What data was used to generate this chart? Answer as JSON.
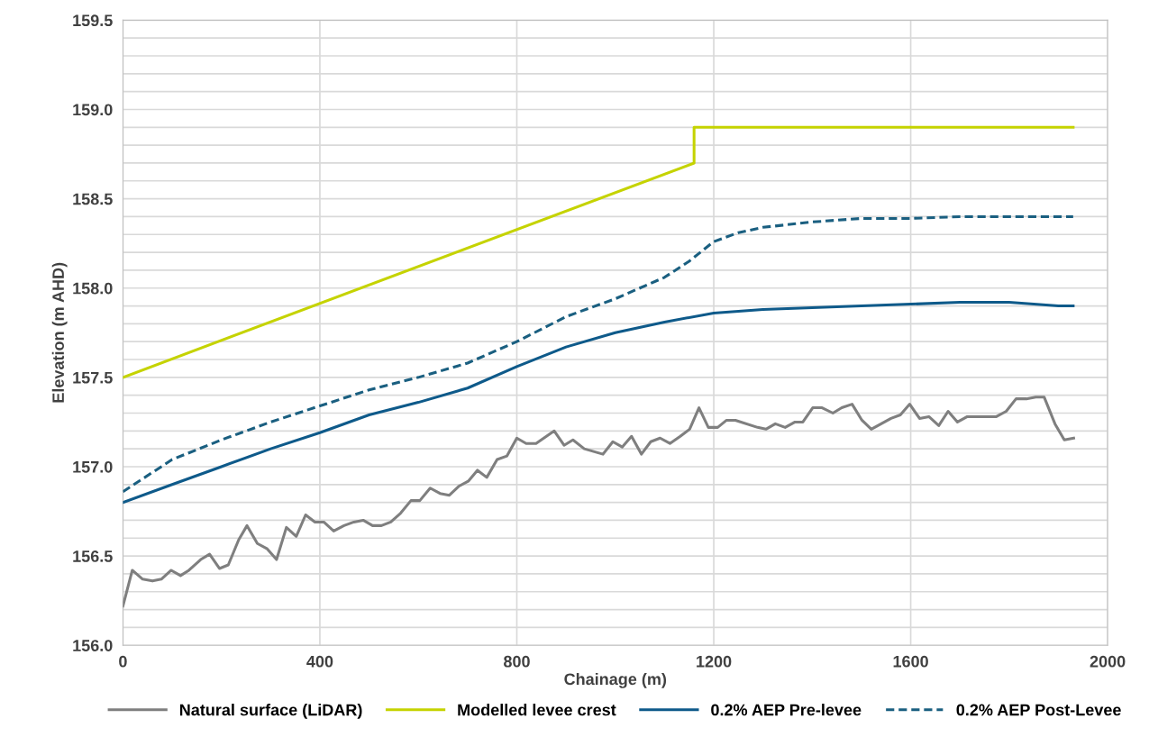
{
  "chart_data": {
    "type": "line",
    "xlabel": "Chainage (m)",
    "ylabel": "Elevation (m AHD)",
    "xlim": [
      0,
      2000
    ],
    "xticks": [
      0,
      400,
      800,
      1200,
      1600,
      2000
    ],
    "ylim": [
      156.0,
      159.5
    ],
    "yticks": [
      {
        "value": 156.0,
        "label": "156.0"
      },
      {
        "value": 156.1,
        "label": null
      },
      {
        "value": 156.2,
        "label": null
      },
      {
        "value": 156.3,
        "label": null
      },
      {
        "value": 156.4,
        "label": null
      },
      {
        "value": 156.5,
        "label": "156.5"
      },
      {
        "value": 156.6,
        "label": null
      },
      {
        "value": 156.7,
        "label": null
      },
      {
        "value": 156.8,
        "label": null
      },
      {
        "value": 156.9,
        "label": null
      },
      {
        "value": 157.0,
        "label": "157.0"
      },
      {
        "value": 157.1,
        "label": null
      },
      {
        "value": 157.2,
        "label": null
      },
      {
        "value": 157.3,
        "label": null
      },
      {
        "value": 157.4,
        "label": null
      },
      {
        "value": 157.5,
        "label": "157.5"
      },
      {
        "value": 157.6,
        "label": null
      },
      {
        "value": 157.7,
        "label": null
      },
      {
        "value": 157.8,
        "label": null
      },
      {
        "value": 157.9,
        "label": null
      },
      {
        "value": 158.0,
        "label": "158.0"
      },
      {
        "value": 158.1,
        "label": null
      },
      {
        "value": 158.2,
        "label": null
      },
      {
        "value": 158.3,
        "label": null
      },
      {
        "value": 158.4,
        "label": null
      },
      {
        "value": 158.5,
        "label": "158.5"
      },
      {
        "value": 158.6,
        "label": null
      },
      {
        "value": 158.7,
        "label": null
      },
      {
        "value": 158.8,
        "label": null
      },
      {
        "value": 158.9,
        "label": null
      },
      {
        "value": 159.0,
        "label": "159.0"
      },
      {
        "value": 159.1,
        "label": null
      },
      {
        "value": 159.2,
        "label": null
      },
      {
        "value": 159.3,
        "label": null
      },
      {
        "value": 159.4,
        "label": null
      },
      {
        "value": 159.5,
        "label": "159.5"
      }
    ],
    "grid": true,
    "legend": "bottom",
    "marker": "none",
    "series": [
      {
        "name": "Natural surface (LiDAR)",
        "color": "#7f7f7f",
        "line_style": "solid",
        "x": [
          0,
          19,
          40,
          60,
          78,
          98,
          117,
          134,
          158,
          176,
          196,
          214,
          235,
          252,
          273,
          293,
          312,
          332,
          352,
          371,
          390,
          408,
          428,
          449,
          469,
          488,
          507,
          525,
          544,
          564,
          585,
          603,
          624,
          644,
          663,
          682,
          702,
          720,
          739,
          760,
          780,
          800,
          819,
          839,
          876,
          896,
          914,
          937,
          975,
          995,
          1014,
          1033,
          1053,
          1072,
          1091,
          1111,
          1132,
          1151,
          1170,
          1189,
          1208,
          1226,
          1244,
          1289,
          1306,
          1325,
          1345,
          1365,
          1381,
          1401,
          1420,
          1442,
          1460,
          1481,
          1501,
          1520,
          1560,
          1579,
          1598,
          1618,
          1637,
          1657,
          1676,
          1695,
          1715,
          1735,
          1774,
          1794,
          1814,
          1835,
          1854,
          1871,
          1893,
          1912,
          1931
        ],
        "values": [
          156.22,
          156.42,
          156.37,
          156.36,
          156.37,
          156.42,
          156.39,
          156.42,
          156.48,
          156.51,
          156.43,
          156.45,
          156.59,
          156.67,
          156.57,
          156.54,
          156.48,
          156.66,
          156.61,
          156.73,
          156.69,
          156.69,
          156.64,
          156.67,
          156.69,
          156.7,
          156.67,
          156.67,
          156.69,
          156.74,
          156.81,
          156.81,
          156.88,
          156.85,
          156.84,
          156.89,
          156.92,
          156.98,
          156.94,
          157.04,
          157.06,
          157.16,
          157.13,
          157.13,
          157.2,
          157.12,
          157.15,
          157.1,
          157.07,
          157.14,
          157.11,
          157.17,
          157.07,
          157.14,
          157.16,
          157.13,
          157.17,
          157.21,
          157.33,
          157.22,
          157.22,
          157.26,
          157.26,
          157.22,
          157.21,
          157.24,
          157.22,
          157.25,
          157.25,
          157.33,
          157.33,
          157.3,
          157.33,
          157.35,
          157.26,
          157.21,
          157.27,
          157.29,
          157.35,
          157.27,
          157.28,
          157.23,
          157.31,
          157.25,
          157.28,
          157.28,
          157.28,
          157.31,
          157.38,
          157.38,
          157.39,
          157.39,
          157.24,
          157.15,
          157.16
        ]
      },
      {
        "name": "Modelled levee crest",
        "color": "#c5d300",
        "line_style": "solid",
        "x": [
          0,
          1160,
          1160,
          1930
        ],
        "values": [
          157.5,
          158.7,
          158.9,
          158.9
        ]
      },
      {
        "name": "0.2% AEP Pre-levee",
        "color": "#0e5a8a",
        "line_style": "solid",
        "x": [
          0,
          100,
          200,
          300,
          400,
          500,
          600,
          700,
          800,
          900,
          1000,
          1100,
          1200,
          1300,
          1400,
          1500,
          1600,
          1700,
          1800,
          1900,
          1930
        ],
        "values": [
          156.8,
          156.9,
          157.0,
          157.1,
          157.19,
          157.29,
          157.36,
          157.44,
          157.56,
          157.67,
          157.75,
          157.81,
          157.86,
          157.88,
          157.89,
          157.9,
          157.91,
          157.92,
          157.92,
          157.9,
          157.9
        ]
      },
      {
        "name": "0.2% AEP Post-Levee",
        "color": "#1a5f80",
        "line_style": "dashed",
        "x": [
          0,
          100,
          200,
          300,
          400,
          500,
          600,
          700,
          800,
          900,
          1000,
          1100,
          1150,
          1200,
          1250,
          1300,
          1400,
          1500,
          1600,
          1700,
          1930
        ],
        "values": [
          156.86,
          157.04,
          157.15,
          157.25,
          157.34,
          157.43,
          157.5,
          157.58,
          157.7,
          157.84,
          157.94,
          158.06,
          158.15,
          158.26,
          158.31,
          158.34,
          158.37,
          158.39,
          158.39,
          158.4,
          158.4
        ]
      }
    ]
  }
}
